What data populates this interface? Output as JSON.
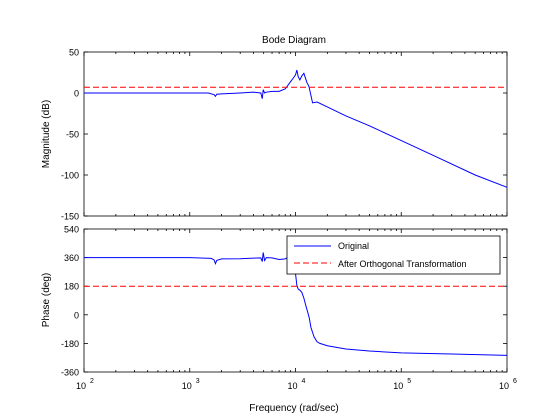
{
  "chart_data": {
    "type": "line",
    "title": "Bode Diagram",
    "xlabel": "Frequency  (rad/sec)",
    "xscale": "log",
    "xlim": [
      100,
      1000000
    ],
    "x_ticks": [
      {
        "v": 100,
        "base": "10",
        "exp": "2"
      },
      {
        "v": 1000,
        "base": "10",
        "exp": "3"
      },
      {
        "v": 10000,
        "base": "10",
        "exp": "4"
      },
      {
        "v": 100000,
        "base": "10",
        "exp": "5"
      },
      {
        "v": 1000000,
        "base": "10",
        "exp": "6"
      }
    ],
    "legend": {
      "placement": "top-right",
      "panel": "phase"
    },
    "grid": false,
    "colors": {
      "original": "#0000ff",
      "transformed": "#ff0000",
      "axes": "#000000"
    },
    "panels": [
      {
        "id": "magnitude",
        "ylabel": "Magnitude (dB)",
        "ylim": [
          -150,
          50
        ],
        "y_ticks": [
          50,
          0,
          -50,
          -100,
          -150
        ],
        "series": [
          {
            "name": "Original",
            "style": "solid",
            "x": [
              100,
              1000,
              1500,
              1700,
              1750,
              1800,
              2000,
              3000,
              4000,
              4700,
              4850,
              4950,
              5100,
              5300,
              6000,
              7000,
              8000,
              9000,
              9500,
              10000,
              10300,
              10600,
              11000,
              11500,
              12000,
              12800,
              13400,
              14500,
              16000,
              20000,
              30000,
              50000,
              100000,
              200000,
              500000,
              1000000
            ],
            "y": [
              0,
              0,
              0,
              -2,
              -4,
              -1.5,
              -1,
              0,
              1,
              0,
              -7,
              4,
              0,
              1,
              2,
              2,
              5,
              14,
              18,
              22,
              28,
              20,
              16,
              21,
              24,
              13,
              8,
              -12,
              -11,
              -17,
              -28,
              -40,
              -58,
              -76,
              -100,
              -115
            ]
          },
          {
            "name": "After Orthogonal Transformation",
            "style": "dashed",
            "x": [
              100,
              1000000
            ],
            "y": [
              7,
              7
            ]
          }
        ]
      },
      {
        "id": "phase",
        "ylabel": "Phase (deg)",
        "ylim": [
          -360,
          540
        ],
        "y_ticks": [
          540,
          360,
          180,
          0,
          -180,
          -360
        ],
        "series": [
          {
            "name": "Original",
            "style": "solid",
            "x": [
              100,
              1000,
              1600,
              1700,
              1750,
              1800,
              2000,
              3000,
              4000,
              4700,
              4850,
              4950,
              5100,
              5300,
              6000,
              7000,
              8000,
              9000,
              9500,
              10000,
              10300,
              10600,
              11000,
              11500,
              12000,
              12500,
              13000,
              13500,
              14000,
              15000,
              16000,
              17000,
              20000,
              30000,
              50000,
              100000,
              300000,
              1000000
            ],
            "y": [
              360,
              360,
              355,
              345,
              322,
              342,
              352,
              353,
              357,
              358,
              335,
              392,
              342,
              360,
              358,
              348,
              352,
              375,
              320,
              260,
              185,
              162,
              155,
              140,
              105,
              60,
              20,
              -20,
              -80,
              -140,
              -170,
              -180,
              -195,
              -215,
              -228,
              -240,
              -247,
              -255
            ]
          },
          {
            "name": "After Orthogonal Transformation",
            "style": "dashed",
            "x": [
              100,
              1000000
            ],
            "y": [
              180,
              180
            ]
          }
        ]
      }
    ]
  }
}
